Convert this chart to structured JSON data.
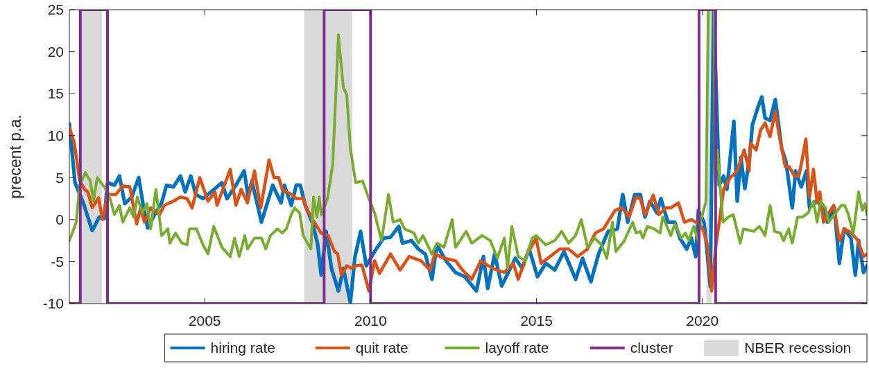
{
  "chart_data": {
    "type": "line",
    "ylabel": "precent p.a.",
    "xlim": [
      2000.92,
      2024.96
    ],
    "xticks": [
      2005,
      2010,
      2015,
      2020
    ],
    "ylim": [
      -10,
      25
    ],
    "yticks": [
      -10,
      -5,
      0,
      5,
      10,
      15,
      20,
      25
    ],
    "grid": false,
    "legend": "bottom",
    "bands": [
      {
        "axis": "x",
        "from": 2001.25,
        "to": 2001.9,
        "label": "NBER recession",
        "color": "#d9d9d9"
      },
      {
        "axis": "x",
        "from": 2008.0,
        "to": 2009.45,
        "color": "#d9d9d9"
      },
      {
        "axis": "x",
        "from": 2020.12,
        "to": 2020.28,
        "color": "#d9d9d9"
      }
    ],
    "series": [
      {
        "name": "hiring rate",
        "color": "#0072bd",
        "x": [
          2000.92,
          2001.09,
          2001.34,
          2001.61,
          2001.82,
          2001.97,
          2002.07,
          2002.28,
          2002.43,
          2002.59,
          2002.8,
          2003.01,
          2003.16,
          2003.28,
          2003.49,
          2003.7,
          2003.85,
          2004.06,
          2004.27,
          2004.41,
          2004.58,
          2004.73,
          2004.95,
          2005.25,
          2005.52,
          2005.67,
          2005.94,
          2006.19,
          2006.31,
          2006.42,
          2006.71,
          2007.05,
          2007.3,
          2007.4,
          2007.61,
          2007.76,
          2007.88,
          2008.03,
          2008.24,
          2008.4,
          2008.51,
          2008.66,
          2008.82,
          2009.03,
          2009.18,
          2009.39,
          2009.53,
          2009.7,
          2009.87,
          2010.12,
          2010.39,
          2010.6,
          2010.85,
          2010.96,
          2011.23,
          2011.44,
          2011.65,
          2011.85,
          2012.0,
          2012.27,
          2012.56,
          2012.84,
          2013.19,
          2013.4,
          2013.53,
          2013.74,
          2013.95,
          2014.15,
          2014.36,
          2014.57,
          2014.78,
          2015.03,
          2015.28,
          2015.55,
          2015.83,
          2016.18,
          2016.39,
          2016.64,
          2016.87,
          2017.16,
          2017.44,
          2017.6,
          2017.75,
          2017.96,
          2018.13,
          2018.27,
          2018.42,
          2018.63,
          2018.75,
          2018.96,
          2019.17,
          2019.32,
          2019.53,
          2019.67,
          2019.8,
          2019.88,
          2020.05,
          2020.15,
          2020.24,
          2020.34,
          2020.51,
          2020.64,
          2020.74,
          2020.95,
          2021.05,
          2021.16,
          2021.28,
          2021.41,
          2021.51,
          2021.66,
          2021.79,
          2021.89,
          2022.04,
          2022.2,
          2022.39,
          2022.52,
          2022.71,
          2022.81,
          2022.98,
          2023.14,
          2023.23,
          2023.44,
          2023.65,
          2023.77,
          2023.98,
          2024.13,
          2024.27,
          2024.48,
          2024.61,
          2024.71,
          2024.86,
          2024.96
        ],
        "values": [
          11.4,
          4.4,
          2,
          -1.3,
          0.3,
          0.1,
          4.4,
          4.1,
          5.2,
          1.9,
          2.7,
          5,
          1.4,
          -1,
          0.6,
          2,
          4.1,
          3.9,
          5.2,
          3.3,
          5.2,
          3,
          2.5,
          3.5,
          4.4,
          2.5,
          4.1,
          5.8,
          2.7,
          4.6,
          -0.3,
          4.1,
          2,
          4.1,
          1.7,
          4.1,
          4.1,
          1.7,
          -0.3,
          -2.8,
          -6.6,
          -1.4,
          -5.8,
          -8.5,
          -5.8,
          -9.9,
          -4.4,
          -1.4,
          -5.5,
          -3.8,
          -2.2,
          -2.1,
          -0.8,
          -2.8,
          -2.5,
          -3.5,
          -4.1,
          -7.1,
          -3,
          -4.9,
          -6.3,
          -6.8,
          -8.5,
          -4.4,
          -8.2,
          -4.1,
          -7.9,
          -6.3,
          -4.6,
          -5.8,
          -3.5,
          -6.8,
          -5.2,
          -6,
          -3.8,
          -7.1,
          -4.6,
          -7.4,
          -4.1,
          -1.4,
          -1.1,
          3,
          -0.3,
          3,
          3,
          0.3,
          2.2,
          0.8,
          2.5,
          -0.3,
          -0.3,
          -2.2,
          -3.5,
          -2.2,
          -4.4,
          1.1,
          -0.3,
          -4.1,
          -8,
          25,
          4.1,
          5.2,
          3.6,
          11.7,
          2.2,
          7.4,
          3.7,
          6.9,
          11.3,
          13.2,
          14.6,
          12.1,
          11.8,
          14.3,
          8.5,
          6.9,
          1.4,
          5.8,
          3.9,
          5.8,
          1.4,
          2.2,
          1.4,
          -0.3,
          1.4,
          -5.2,
          -1.1,
          -2.2,
          -6.6,
          -2.5,
          -6.3,
          -5.5
        ]
      },
      {
        "name": "quit rate",
        "color": "#d95319",
        "x": [
          2000.92,
          2001.07,
          2001.17,
          2001.23,
          2001.38,
          2001.48,
          2001.61,
          2001.8,
          2001.92,
          2002.07,
          2002.32,
          2002.53,
          2002.74,
          2002.95,
          2003.07,
          2003.18,
          2003.37,
          2003.64,
          2003.78,
          2004.06,
          2004.27,
          2004.47,
          2004.62,
          2004.85,
          2005.1,
          2005.31,
          2005.37,
          2005.52,
          2005.77,
          2005.94,
          2006.1,
          2006.29,
          2006.5,
          2006.69,
          2006.94,
          2007.09,
          2007.23,
          2007.34,
          2007.61,
          2007.76,
          2007.97,
          2008.09,
          2008.3,
          2008.51,
          2008.72,
          2008.91,
          2009.01,
          2009.12,
          2009.28,
          2009.43,
          2009.55,
          2009.74,
          2009.95,
          2010.12,
          2010.27,
          2010.6,
          2010.89,
          2011.16,
          2011.52,
          2011.79,
          2011.94,
          2012.21,
          2012.56,
          2012.77,
          2013.05,
          2013.32,
          2013.67,
          2014.03,
          2014.3,
          2014.45,
          2014.72,
          2014.99,
          2015.14,
          2015.41,
          2015.7,
          2015.97,
          2016.24,
          2016.54,
          2016.77,
          2017.02,
          2017.37,
          2017.58,
          2017.79,
          2018.0,
          2018.13,
          2018.27,
          2018.52,
          2018.69,
          2018.9,
          2019.05,
          2019.28,
          2019.46,
          2019.67,
          2019.88,
          2020.01,
          2020.15,
          2020.28,
          2020.41,
          2020.51,
          2020.64,
          2020.84,
          2021.05,
          2021.26,
          2021.41,
          2021.45,
          2021.62,
          2021.76,
          2021.89,
          2022.04,
          2022.2,
          2022.31,
          2022.5,
          2022.62,
          2022.77,
          2022.91,
          2023.02,
          2023.12,
          2023.23,
          2023.35,
          2023.46,
          2023.54,
          2023.65,
          2023.81,
          2023.96,
          2024.13,
          2024.29,
          2024.5,
          2024.69,
          2024.86,
          2024.96
        ],
        "values": [
          11,
          9.1,
          6.3,
          4.7,
          3.6,
          3.3,
          1.4,
          2.6,
          0,
          3,
          3,
          4,
          3.9,
          -0.5,
          1.4,
          -0.3,
          1.4,
          0.6,
          1.7,
          2.2,
          2.7,
          2.5,
          1.4,
          5,
          2.2,
          3.3,
          1.7,
          3.3,
          6,
          1.7,
          3.6,
          2,
          5.8,
          1.4,
          7.1,
          5,
          5,
          3.6,
          3,
          2.5,
          2.5,
          1.2,
          -0.3,
          -1.6,
          -1.9,
          -3.8,
          -4.1,
          -6.6,
          -5.5,
          -5.8,
          -5.5,
          -5.4,
          -8.5,
          -4.9,
          -6.4,
          -4.1,
          -6,
          -4.4,
          -4.9,
          -6,
          -4.1,
          -4.6,
          -4.9,
          -6,
          -7.1,
          -4.9,
          -5.8,
          -6.3,
          -5.2,
          -7.1,
          -4.1,
          -2.2,
          -5.2,
          -4.4,
          -3.5,
          -3.5,
          -4.4,
          -3.5,
          -1.6,
          -1.1,
          1.1,
          1.4,
          0.3,
          2.7,
          2.5,
          0.6,
          2.9,
          0.6,
          1.4,
          1.4,
          2,
          -0.3,
          0,
          -0.5,
          -1.1,
          -3,
          -8.5,
          -3,
          -0.3,
          3.6,
          5,
          5.8,
          8.3,
          5.8,
          9.1,
          8.3,
          10.7,
          11.5,
          9.9,
          12.9,
          10.2,
          6.3,
          6.3,
          5.2,
          5.2,
          7.4,
          9.6,
          2.7,
          6,
          2,
          3.3,
          -0.3,
          0.8,
          1.7,
          -2.5,
          -1.1,
          -1.6,
          -2.5,
          -4.4,
          -4.1
        ]
      },
      {
        "name": "layoff rate",
        "color": "#77ac30",
        "x": [
          2000.92,
          2001.13,
          2001.23,
          2001.4,
          2001.55,
          2001.65,
          2001.76,
          2001.97,
          2002.11,
          2002.28,
          2002.43,
          2002.53,
          2002.74,
          2002.86,
          2002.97,
          2003.12,
          2003.26,
          2003.37,
          2003.53,
          2003.7,
          2003.89,
          2003.95,
          2004.12,
          2004.31,
          2004.47,
          2004.54,
          2004.75,
          2004.95,
          2005.1,
          2005.27,
          2005.52,
          2005.77,
          2005.9,
          2006.04,
          2006.21,
          2006.29,
          2006.5,
          2006.71,
          2006.84,
          2006.98,
          2007.19,
          2007.34,
          2007.46,
          2007.61,
          2007.71,
          2007.86,
          2007.97,
          2008.2,
          2008.28,
          2008.38,
          2008.45,
          2008.51,
          2008.7,
          2008.86,
          2009.03,
          2009.18,
          2009.28,
          2009.39,
          2009.55,
          2009.76,
          2009.95,
          2010.12,
          2010.33,
          2010.54,
          2010.68,
          2010.89,
          2011.02,
          2011.31,
          2011.44,
          2011.58,
          2011.85,
          2012.0,
          2012.21,
          2012.46,
          2012.56,
          2012.88,
          2013.05,
          2013.36,
          2013.61,
          2013.82,
          2014.03,
          2014.13,
          2014.26,
          2014.45,
          2014.66,
          2014.87,
          2014.99,
          2015.28,
          2015.55,
          2015.76,
          2015.97,
          2016.18,
          2016.35,
          2016.54,
          2016.75,
          2016.96,
          2017.12,
          2017.29,
          2017.39,
          2017.65,
          2017.9,
          2018.0,
          2018.13,
          2018.21,
          2018.34,
          2018.54,
          2018.73,
          2018.8,
          2018.9,
          2019.05,
          2019.17,
          2019.36,
          2019.49,
          2019.59,
          2019.74,
          2019.88,
          2019.94,
          2020.11,
          2020.18,
          2020.36,
          2020.39,
          2020.45,
          2020.62,
          2020.78,
          2020.93,
          2021.14,
          2021.24,
          2021.55,
          2021.72,
          2021.89,
          2022.04,
          2022.18,
          2022.35,
          2022.45,
          2022.6,
          2022.71,
          2022.87,
          2023.02,
          2023.19,
          2023.35,
          2023.46,
          2023.56,
          2023.71,
          2023.81,
          2023.98,
          2024.19,
          2024.29,
          2024.4,
          2024.55,
          2024.71,
          2024.82,
          2024.9,
          2024.96
        ],
        "values": [
          -2.5,
          -0.3,
          4.1,
          5.6,
          4.6,
          2.2,
          5,
          3.9,
          3,
          0.6,
          1.7,
          -0.3,
          1.4,
          0.3,
          2.7,
          0.8,
          1.9,
          -1.1,
          3.6,
          -1.9,
          -1.1,
          -2.8,
          -1.6,
          -2.8,
          -3,
          -1.1,
          -1.1,
          -3,
          -4.1,
          -0.8,
          -3.3,
          -4.4,
          -2.2,
          -4.4,
          -1.9,
          -3.5,
          -2.2,
          -2.2,
          -3.5,
          -1.9,
          -1.1,
          -1.6,
          -1.1,
          0.6,
          1.4,
          0.8,
          -1.9,
          -3.5,
          2.7,
          0.3,
          2.7,
          0.6,
          2.5,
          6.6,
          22,
          15.7,
          14.9,
          8.5,
          4.4,
          4.6,
          2.5,
          0.8,
          -2.5,
          3,
          -0.3,
          0,
          -1.1,
          -1.6,
          -2.8,
          -1.9,
          -4.1,
          -2.8,
          -3.3,
          0,
          -3.3,
          -1.4,
          -2.8,
          -1.9,
          -2.5,
          -4.6,
          -2.2,
          -5.8,
          -0.8,
          -4.4,
          -4.9,
          -2.2,
          -1.9,
          -3,
          -2.5,
          -1.4,
          -2.8,
          -1.9,
          0,
          -3.3,
          -2.2,
          -3,
          -4.6,
          -0.3,
          -3.8,
          -2.5,
          -0.3,
          -1.6,
          -1.4,
          -2.2,
          -0.8,
          -1.1,
          -1.6,
          0.3,
          -0.5,
          -1.9,
          -0.5,
          -2.2,
          -1.6,
          -2.5,
          -0.8,
          -2.5,
          -0.3,
          2.2,
          25,
          25,
          4.6,
          8.3,
          -0.3,
          0.3,
          0.6,
          -2.8,
          -1.1,
          -1.4,
          -0.8,
          -1.9,
          1.7,
          -1.4,
          -1.6,
          -2.5,
          -1.1,
          -2.8,
          0.3,
          0.3,
          0.8,
          2.2,
          -0.3,
          2.2,
          1.4,
          -0.3,
          0.6,
          1.7,
          1.7,
          0.6,
          -1.6,
          3.3,
          1.1,
          1.9,
          0.6
        ]
      },
      {
        "name": "cluster",
        "type": "step",
        "color": "#7e2f8e",
        "x": [
          2000.92,
          2001.25,
          2002.07,
          2008.6,
          2010.0,
          2019.9,
          2020.4,
          2024.96
        ],
        "values": [
          -10,
          25,
          -10,
          25,
          -10,
          25,
          -10,
          -10
        ]
      }
    ]
  }
}
